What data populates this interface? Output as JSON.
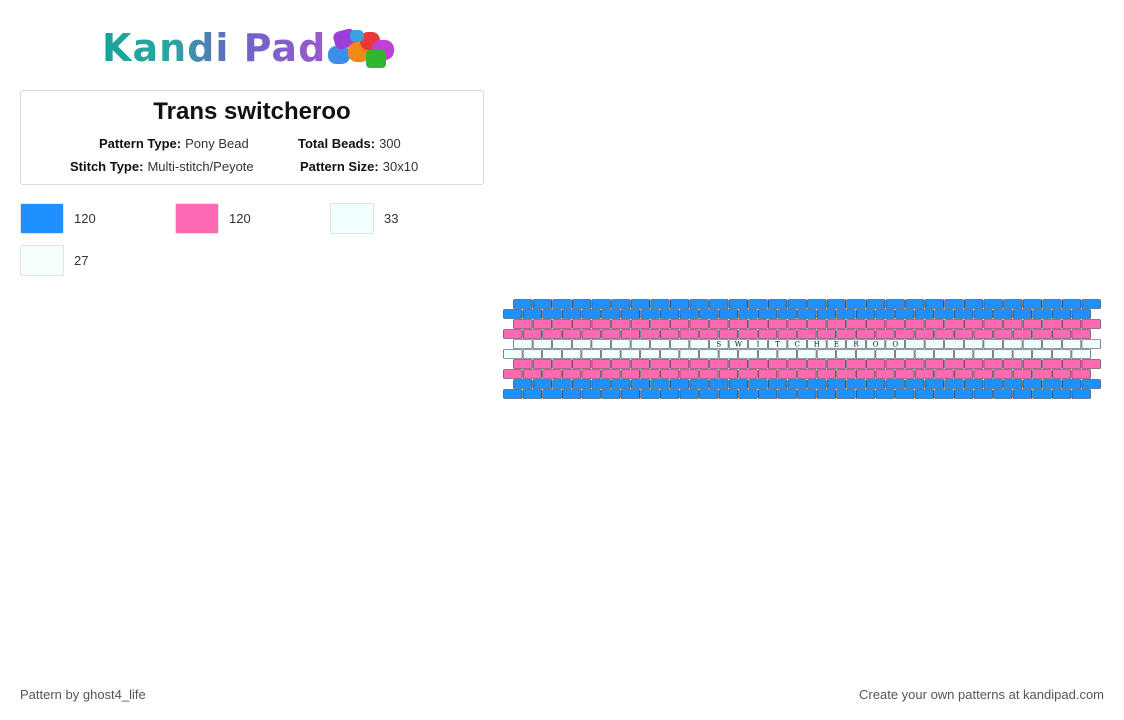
{
  "logo": {
    "text": "Kandi Pad",
    "icon": "bead-pile-icon"
  },
  "pattern": {
    "title": "Trans switcheroo",
    "type_label": "Pattern Type:",
    "type_value": "Pony Bead",
    "total_label": "Total Beads:",
    "total_value": "300",
    "stitch_label": "Stitch Type:",
    "stitch_value": "Multi-stitch/Peyote",
    "size_label": "Pattern Size:",
    "size_value": "30x10"
  },
  "palette": [
    {
      "color": "#1e90ff",
      "count": "120"
    },
    {
      "color": "#ff69b4",
      "count": "120"
    },
    {
      "color": "#f0ffff",
      "count": "33"
    },
    {
      "color": "#f5fffa",
      "count": "27"
    }
  ],
  "grid": {
    "row_colors": [
      "#1e90ff",
      "#1e90ff",
      "#ff69b4",
      "#ff69b4",
      "#f0ffff",
      "#f0ffff",
      "#ff69b4",
      "#ff69b4",
      "#1e90ff",
      "#1e90ff"
    ],
    "letters": [
      "S",
      "W",
      "I",
      "T",
      "C",
      "H",
      "E",
      "R",
      "O",
      "O"
    ]
  },
  "footer": {
    "author": "Pattern by ghost4_life",
    "credit": "Create your own patterns at kandipad.com"
  }
}
